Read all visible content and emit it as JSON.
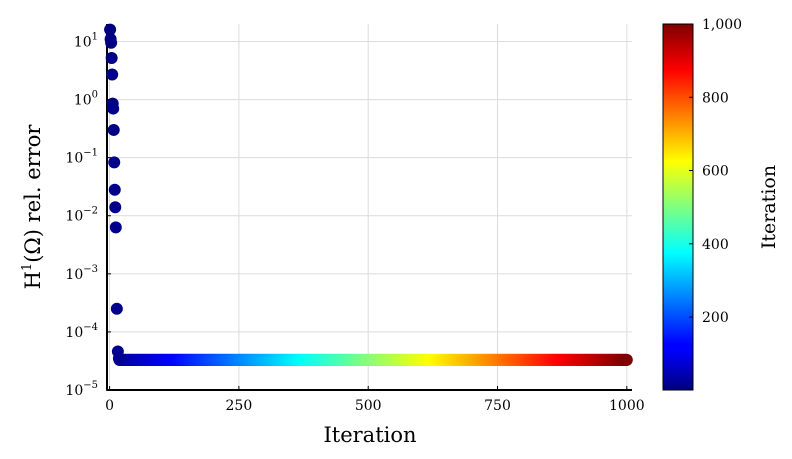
{
  "chart_data": {
    "type": "scatter",
    "title": "",
    "xlabel": "Iteration",
    "ylabel_main": "H",
    "ylabel_sup": "1",
    "ylabel_rest": "(Ω) rel. error",
    "y_scale": "log",
    "xlim": [
      -5,
      1010
    ],
    "ylim": [
      1e-05,
      20
    ],
    "x_ticks": [
      0,
      250,
      500,
      750,
      1000
    ],
    "x_tick_labels": [
      "0",
      "250",
      "500",
      "750",
      "1000"
    ],
    "y_ticks": [
      1e-05,
      0.0001,
      0.001,
      0.01,
      0.1,
      1,
      10
    ],
    "y_tick_bases": [
      "10",
      "10",
      "10",
      "10",
      "10",
      "10",
      "10"
    ],
    "y_tick_exps": [
      "−5",
      "−4",
      "−3",
      "−2",
      "−1",
      "0",
      "1"
    ],
    "grid": true,
    "legend": "none",
    "series": [
      {
        "color_by": "iteration",
        "head_points": [
          {
            "x": 1,
            "y": 16
          },
          {
            "x": 2,
            "y": 11
          },
          {
            "x": 3,
            "y": 9.5
          },
          {
            "x": 4,
            "y": 5.2
          },
          {
            "x": 5,
            "y": 2.7
          },
          {
            "x": 6,
            "y": 0.85
          },
          {
            "x": 7,
            "y": 0.7
          },
          {
            "x": 8,
            "y": 0.3
          },
          {
            "x": 9,
            "y": 0.083
          },
          {
            "x": 10,
            "y": 0.028
          },
          {
            "x": 11,
            "y": 0.014
          },
          {
            "x": 12,
            "y": 0.0063
          },
          {
            "x": 14,
            "y": 0.00025
          },
          {
            "x": 16,
            "y": 4.6e-05
          },
          {
            "x": 18,
            "y": 3.5e-05
          }
        ],
        "plateau": {
          "x_start": 19,
          "x_end": 1000,
          "y": 3.3e-05
        }
      }
    ],
    "colorbar": {
      "label": "Iteration",
      "colormap": "jet",
      "range": [
        1,
        1000
      ],
      "ticks": [
        200,
        400,
        600,
        800,
        1000
      ],
      "tick_labels": [
        "200",
        "400",
        "600",
        "800",
        "1,000"
      ]
    }
  }
}
